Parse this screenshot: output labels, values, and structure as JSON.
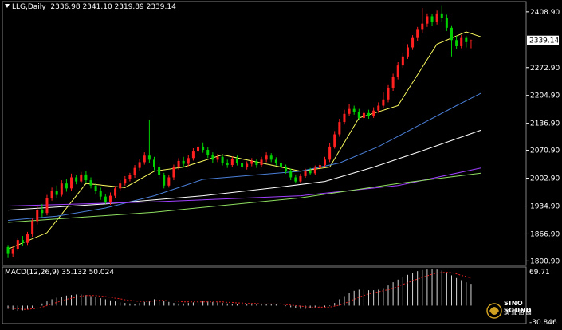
{
  "header": {
    "symbol": "LLG,Daily",
    "ohlc": "2336.98 2341.10 2319.89 2339.14"
  },
  "macd": {
    "label": "MACD(12,26,9) 35.132 50.024",
    "axis_top": "69.71",
    "axis_bottom": "-30.846"
  },
  "logo": {
    "name": "SINO SOUND",
    "subtitle": "漢 聲 語 國"
  },
  "colors": {
    "up": "#ff2020",
    "down": "#00d000",
    "ma5": "#ffff60",
    "ma20": "#4a7fd8",
    "ma60": "#ffffff",
    "ma120": "#a040ff",
    "ma240": "#90e060",
    "macd_signal": "#e02020",
    "price_tag_bg": "#ffffff"
  },
  "chart_data": {
    "type": "candlestick",
    "price_axis": {
      "ticks": [
        2408.9,
        2339.14,
        2272.9,
        2204.9,
        2136.9,
        2070.9,
        2002.9,
        1934.9,
        1866.9,
        1800.9
      ],
      "tick_labels": [
        "2408.90",
        "2339.14",
        "2272.90",
        "2204.90",
        "2136.90",
        "2070.90",
        "2002.90",
        "1934.90",
        "1866.90",
        "1800.90"
      ],
      "current_price": 2339.14,
      "ylim": [
        1790,
        2430
      ]
    },
    "candles": [
      [
        1835,
        1818,
        1840,
        1808
      ],
      [
        1818,
        1830,
        1836,
        1810
      ],
      [
        1830,
        1852,
        1858,
        1826
      ],
      [
        1852,
        1845,
        1862,
        1838
      ],
      [
        1845,
        1866,
        1872,
        1840
      ],
      [
        1866,
        1898,
        1904,
        1860
      ],
      [
        1898,
        1925,
        1935,
        1890
      ],
      [
        1925,
        1918,
        1940,
        1908
      ],
      [
        1918,
        1955,
        1962,
        1912
      ],
      [
        1955,
        1972,
        1980,
        1948
      ],
      [
        1972,
        1962,
        1985,
        1955
      ],
      [
        1962,
        1990,
        1998,
        1958
      ],
      [
        1990,
        1978,
        2000,
        1970
      ],
      [
        1978,
        2005,
        2014,
        1972
      ],
      [
        2005,
        1995,
        2010,
        1988
      ],
      [
        1995,
        2012,
        2018,
        1990
      ],
      [
        2012,
        1998,
        2020,
        1992
      ],
      [
        1998,
        1985,
        2005,
        1978
      ],
      [
        1985,
        1972,
        1992,
        1965
      ],
      [
        1972,
        1958,
        1980,
        1950
      ],
      [
        1958,
        1945,
        1965,
        1940
      ],
      [
        1945,
        1960,
        1968,
        1938
      ],
      [
        1960,
        1978,
        1984,
        1955
      ],
      [
        1978,
        1990,
        1998,
        1972
      ],
      [
        1990,
        2000,
        2008,
        1985
      ],
      [
        2000,
        2010,
        2016,
        1995
      ],
      [
        2010,
        2028,
        2035,
        2004
      ],
      [
        2028,
        2042,
        2050,
        2022
      ],
      [
        2042,
        2058,
        2066,
        2036
      ],
      [
        2058,
        2048,
        2145,
        2040
      ],
      [
        2048,
        2030,
        2055,
        2022
      ],
      [
        2030,
        2010,
        2038,
        2002
      ],
      [
        2010,
        1985,
        2016,
        1978
      ],
      [
        1985,
        2005,
        2012,
        1980
      ],
      [
        2005,
        2030,
        2036,
        1998
      ],
      [
        2030,
        2045,
        2052,
        2024
      ],
      [
        2045,
        2038,
        2055,
        2030
      ],
      [
        2038,
        2052,
        2060,
        2032
      ],
      [
        2052,
        2068,
        2076,
        2046
      ],
      [
        2068,
        2080,
        2088,
        2062
      ],
      [
        2080,
        2072,
        2090,
        2065
      ],
      [
        2072,
        2060,
        2078,
        2052
      ],
      [
        2060,
        2048,
        2066,
        2040
      ],
      [
        2048,
        2055,
        2062,
        2042
      ],
      [
        2055,
        2040,
        2060,
        2034
      ],
      [
        2040,
        2035,
        2048,
        2028
      ],
      [
        2035,
        2050,
        2056,
        2030
      ],
      [
        2050,
        2040,
        2058,
        2034
      ],
      [
        2040,
        2030,
        2046,
        2024
      ],
      [
        2030,
        2038,
        2044,
        2024
      ],
      [
        2038,
        2045,
        2052,
        2032
      ],
      [
        2045,
        2035,
        2050,
        2028
      ],
      [
        2035,
        2048,
        2055,
        2030
      ],
      [
        2048,
        2058,
        2066,
        2042
      ],
      [
        2058,
        2048,
        2064,
        2042
      ],
      [
        2048,
        2040,
        2054,
        2034
      ],
      [
        2040,
        2030,
        2046,
        2024
      ],
      [
        2030,
        2020,
        2036,
        2014
      ],
      [
        2020,
        2005,
        2026,
        1998
      ],
      [
        2005,
        1995,
        2012,
        1990
      ],
      [
        1995,
        2008,
        2014,
        1990
      ],
      [
        2008,
        2020,
        2026,
        2004
      ],
      [
        2020,
        2015,
        2028,
        2010
      ],
      [
        2015,
        2028,
        2034,
        2010
      ],
      [
        2028,
        2035,
        2040,
        2022
      ],
      [
        2035,
        2048,
        2055,
        2030
      ],
      [
        2048,
        2080,
        2088,
        2042
      ],
      [
        2080,
        2110,
        2118,
        2075
      ],
      [
        2110,
        2140,
        2148,
        2104
      ],
      [
        2140,
        2160,
        2170,
        2134
      ],
      [
        2160,
        2172,
        2184,
        2154
      ],
      [
        2172,
        2165,
        2180,
        2158
      ],
      [
        2165,
        2150,
        2172,
        2145
      ],
      [
        2150,
        2162,
        2168,
        2144
      ],
      [
        2162,
        2155,
        2170,
        2148
      ],
      [
        2155,
        2168,
        2176,
        2150
      ],
      [
        2168,
        2180,
        2188,
        2162
      ],
      [
        2180,
        2195,
        2212,
        2174
      ],
      [
        2195,
        2222,
        2230,
        2188
      ],
      [
        2222,
        2250,
        2258,
        2216
      ],
      [
        2250,
        2278,
        2286,
        2244
      ],
      [
        2278,
        2300,
        2308,
        2272
      ],
      [
        2300,
        2322,
        2330,
        2294
      ],
      [
        2322,
        2345,
        2352,
        2316
      ],
      [
        2345,
        2365,
        2372,
        2338
      ],
      [
        2365,
        2380,
        2418,
        2358
      ],
      [
        2380,
        2398,
        2405,
        2372
      ],
      [
        2398,
        2385,
        2404,
        2375
      ],
      [
        2385,
        2405,
        2412,
        2378
      ],
      [
        2405,
        2395,
        2425,
        2385
      ],
      [
        2395,
        2370,
        2402,
        2362
      ],
      [
        2370,
        2340,
        2376,
        2300
      ],
      [
        2340,
        2325,
        2350,
        2318
      ],
      [
        2325,
        2345,
        2352,
        2320
      ],
      [
        2345,
        2335,
        2350,
        2322
      ],
      [
        2336.98,
        2339.14,
        2341.1,
        2319.89
      ]
    ],
    "moving_averages": {
      "ma5": [
        [
          0,
          1830
        ],
        [
          8,
          1870
        ],
        [
          16,
          1990
        ],
        [
          24,
          1980
        ],
        [
          30,
          2020
        ],
        [
          36,
          2030
        ],
        [
          44,
          2060
        ],
        [
          52,
          2040
        ],
        [
          60,
          2020
        ],
        [
          66,
          2030
        ],
        [
          72,
          2150
        ],
        [
          80,
          2180
        ],
        [
          88,
          2330
        ],
        [
          94,
          2360
        ],
        [
          97,
          2348
        ]
      ],
      "ma20": [
        [
          0,
          1900
        ],
        [
          10,
          1910
        ],
        [
          20,
          1930
        ],
        [
          30,
          1960
        ],
        [
          40,
          2000
        ],
        [
          50,
          2010
        ],
        [
          60,
          2020
        ],
        [
          68,
          2040
        ],
        [
          76,
          2080
        ],
        [
          84,
          2130
        ],
        [
          92,
          2180
        ],
        [
          97,
          2210
        ]
      ],
      "ma60": [
        [
          0,
          1925
        ],
        [
          20,
          1940
        ],
        [
          40,
          1960
        ],
        [
          55,
          1980
        ],
        [
          65,
          1995
        ],
        [
          75,
          2030
        ],
        [
          85,
          2070
        ],
        [
          97,
          2120
        ]
      ],
      "ma120": [
        [
          0,
          1935
        ],
        [
          30,
          1945
        ],
        [
          60,
          1960
        ],
        [
          80,
          1985
        ],
        [
          97,
          2028
        ]
      ],
      "ma240": [
        [
          0,
          1895
        ],
        [
          30,
          1920
        ],
        [
          60,
          1955
        ],
        [
          80,
          1990
        ],
        [
          97,
          2015
        ]
      ]
    },
    "macd_hist": [
      -6,
      -8,
      -10,
      -9,
      -7,
      -4,
      0,
      4,
      8,
      12,
      15,
      17,
      19,
      20,
      21,
      21,
      20,
      18,
      16,
      14,
      12,
      10,
      8,
      6,
      5,
      4,
      3,
      5,
      7,
      9,
      12,
      11,
      9,
      7,
      5,
      4,
      4,
      5,
      6,
      7,
      8,
      8,
      7,
      6,
      5,
      4,
      3,
      3,
      2,
      2,
      2,
      2,
      3,
      3,
      3,
      2,
      1,
      -1,
      -3,
      -5,
      -6,
      -6,
      -5,
      -5,
      -4,
      -3,
      -1,
      5,
      12,
      18,
      24,
      28,
      30,
      30,
      29,
      29,
      30,
      33,
      38,
      44,
      49,
      54,
      58,
      62,
      65,
      67,
      68,
      69,
      68,
      66,
      62,
      57,
      52,
      48,
      44,
      41
    ],
    "macd_signal": [
      -4,
      -5,
      -6,
      -7,
      -7,
      -6,
      -5,
      -3,
      0,
      3,
      6,
      9,
      12,
      14,
      16,
      18,
      19,
      19,
      19,
      18,
      17,
      16,
      14,
      13,
      11,
      10,
      9,
      8,
      8,
      8,
      9,
      10,
      10,
      9,
      9,
      8,
      7,
      7,
      7,
      7,
      7,
      7,
      7,
      7,
      7,
      6,
      6,
      5,
      5,
      4,
      4,
      4,
      3,
      3,
      3,
      3,
      3,
      2,
      1,
      0,
      -1,
      -2,
      -3,
      -3,
      -3,
      -3,
      -3,
      -1,
      1,
      4,
      8,
      12,
      16,
      19,
      22,
      24,
      26,
      28,
      30,
      33,
      36,
      40,
      43,
      47,
      50,
      53,
      56,
      59,
      61,
      62,
      63,
      62,
      60,
      57,
      55,
      52
    ],
    "macd_ylim": [
      -30.846,
      69.71
    ]
  }
}
